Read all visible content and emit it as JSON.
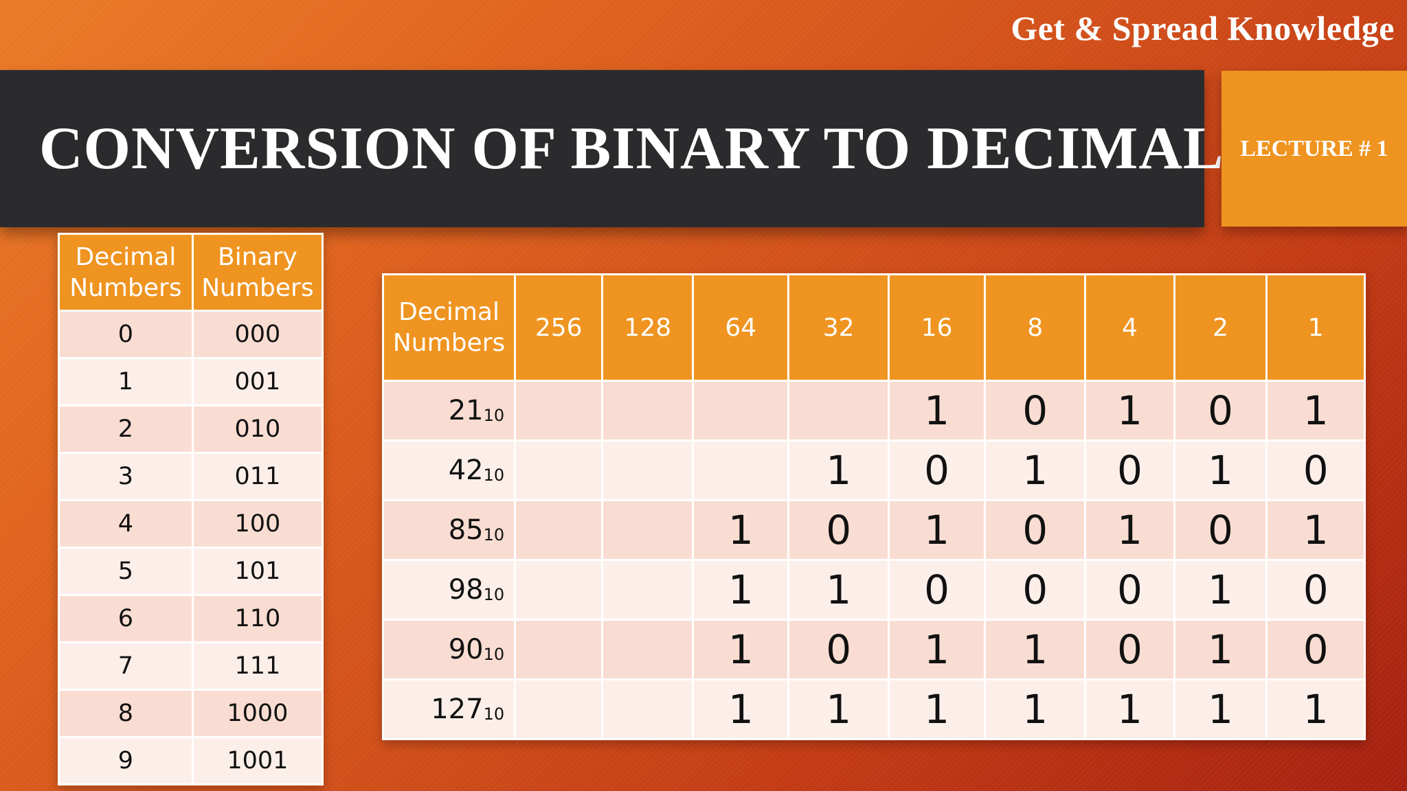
{
  "header": {
    "tagline": "Get & Spread Knowledge",
    "title": "CONVERSION OF BINARY TO DECIMAL",
    "lecture": "LECTURE # 1"
  },
  "left_table": {
    "headers": [
      "Decimal Numbers",
      "Binary Numbers"
    ],
    "rows": [
      [
        "0",
        "000"
      ],
      [
        "1",
        "001"
      ],
      [
        "2",
        "010"
      ],
      [
        "3",
        "011"
      ],
      [
        "4",
        "100"
      ],
      [
        "5",
        "101"
      ],
      [
        "6",
        "110"
      ],
      [
        "7",
        "111"
      ],
      [
        "8",
        "1000"
      ],
      [
        "9",
        "1001"
      ]
    ]
  },
  "main_table": {
    "headers": [
      "Decimal Numbers",
      "256",
      "128",
      "64",
      "32",
      "16",
      "8",
      "4",
      "2",
      "1"
    ],
    "base_subscript": "10",
    "rows": [
      {
        "decimal": "21",
        "bits": [
          "",
          "",
          "",
          "",
          "1",
          "0",
          "1",
          "0",
          "1"
        ]
      },
      {
        "decimal": "42",
        "bits": [
          "",
          "",
          "",
          "1",
          "0",
          "1",
          "0",
          "1",
          "0"
        ]
      },
      {
        "decimal": "85",
        "bits": [
          "",
          "",
          "1",
          "0",
          "1",
          "0",
          "1",
          "0",
          "1"
        ]
      },
      {
        "decimal": "98",
        "bits": [
          "",
          "",
          "1",
          "1",
          "0",
          "0",
          "0",
          "1",
          "0"
        ]
      },
      {
        "decimal": "90",
        "bits": [
          "",
          "",
          "1",
          "0",
          "1",
          "1",
          "0",
          "1",
          "0"
        ]
      },
      {
        "decimal": "127",
        "bits": [
          "",
          "",
          "1",
          "1",
          "1",
          "1",
          "1",
          "1",
          "1"
        ]
      }
    ]
  },
  "colors": {
    "accent_orange": "#ef9420",
    "title_bar": "#2b2b2d",
    "row_odd": "#f9ddd2",
    "row_even": "#fcefea"
  }
}
